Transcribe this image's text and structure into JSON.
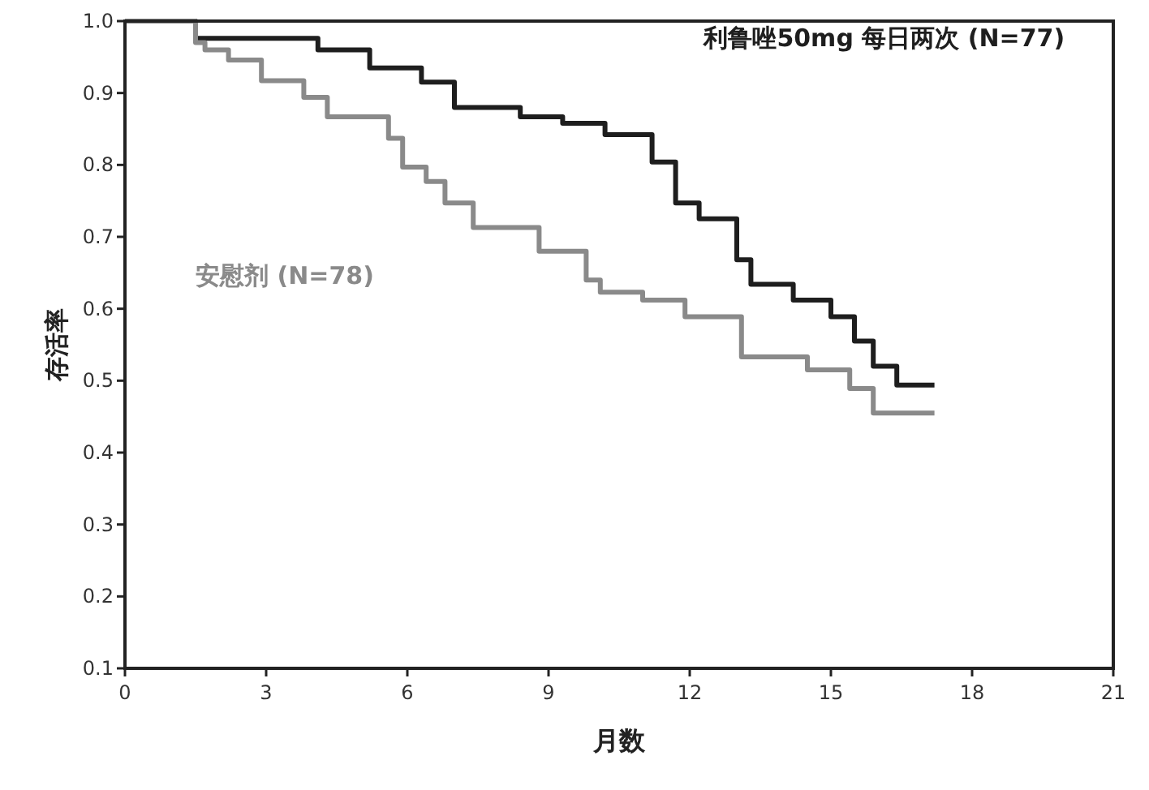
{
  "chart_data": {
    "type": "step",
    "xlabel": "月数",
    "ylabel": "存活率",
    "xlim": [
      0,
      21
    ],
    "ylim": [
      0.1,
      1.0
    ],
    "xticks": [
      0,
      3,
      6,
      9,
      12,
      15,
      18,
      21
    ],
    "yticks": [
      0.1,
      0.2,
      0.3,
      0.4,
      0.5,
      0.6,
      0.7,
      0.8,
      0.9,
      {
        "value": 1.0,
        "label": "1.0"
      }
    ],
    "grid": false,
    "legend": false,
    "line_style": "solid",
    "series": [
      {
        "name": "利鲁唑50mg 每日两次 (N=77)",
        "color": "#1e1e1e",
        "x": [
          0,
          1.5,
          4.1,
          5.2,
          6.3,
          7.0,
          8.4,
          9.3,
          10.2,
          11.2,
          11.7,
          12.2,
          13.0,
          13.3,
          14.2,
          15.0,
          15.5,
          15.9,
          16.4,
          17.2
        ],
        "values": [
          1.0,
          0.976,
          0.96,
          0.935,
          0.915,
          0.88,
          0.867,
          0.858,
          0.842,
          0.804,
          0.747,
          0.725,
          0.668,
          0.634,
          0.612,
          0.589,
          0.555,
          0.52,
          0.494,
          0.494
        ]
      },
      {
        "name": "安慰剂 (N=78)",
        "color": "#8a8a8a",
        "x": [
          0,
          1.5,
          1.7,
          2.2,
          2.9,
          3.8,
          4.3,
          5.6,
          5.9,
          6.4,
          6.8,
          7.4,
          8.8,
          9.8,
          10.1,
          11.0,
          11.9,
          13.1,
          14.5,
          15.4,
          15.9,
          17.2
        ],
        "values": [
          1.0,
          0.97,
          0.96,
          0.946,
          0.917,
          0.894,
          0.867,
          0.837,
          0.797,
          0.777,
          0.747,
          0.713,
          0.68,
          0.64,
          0.623,
          0.612,
          0.589,
          0.533,
          0.515,
          0.489,
          0.455,
          0.455
        ]
      }
    ]
  }
}
